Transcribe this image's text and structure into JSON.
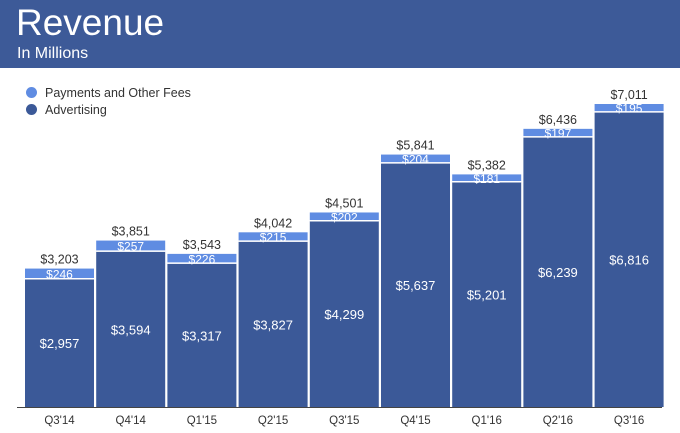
{
  "chart_data": {
    "type": "bar",
    "stacked": true,
    "title": "Revenue",
    "subtitle": "In Millions",
    "categories": [
      "Q3'14",
      "Q4'14",
      "Q1'15",
      "Q2'15",
      "Q3'15",
      "Q4'15",
      "Q1'16",
      "Q2'16",
      "Q3'16"
    ],
    "series": [
      {
        "name": "Advertising",
        "color": "#3b5998",
        "values": [
          2957,
          3594,
          3317,
          3827,
          4299,
          5637,
          5201,
          6239,
          6816
        ],
        "labels": [
          "$2,957",
          "$3,594",
          "$3,317",
          "$3,827",
          "$4,299",
          "$5,637",
          "$5,201",
          "$6,239",
          "$6,816"
        ]
      },
      {
        "name": "Payments and Other Fees",
        "color": "#5f8ce2",
        "values": [
          246,
          257,
          226,
          215,
          202,
          204,
          181,
          197,
          195
        ],
        "labels": [
          "$246",
          "$257",
          "$226",
          "$215",
          "$202",
          "$204",
          "$181",
          "$197",
          "$195"
        ]
      }
    ],
    "totals": [
      3203,
      3851,
      3543,
      4042,
      4501,
      5841,
      5382,
      6436,
      7011
    ],
    "total_labels": [
      "$3,203",
      "$3,851",
      "$3,543",
      "$4,042",
      "$4,501",
      "$5,841",
      "$5,382",
      "$6,436",
      "$7,011"
    ],
    "ylim": [
      0,
      7011
    ],
    "grid": false,
    "legend": "top-left"
  }
}
